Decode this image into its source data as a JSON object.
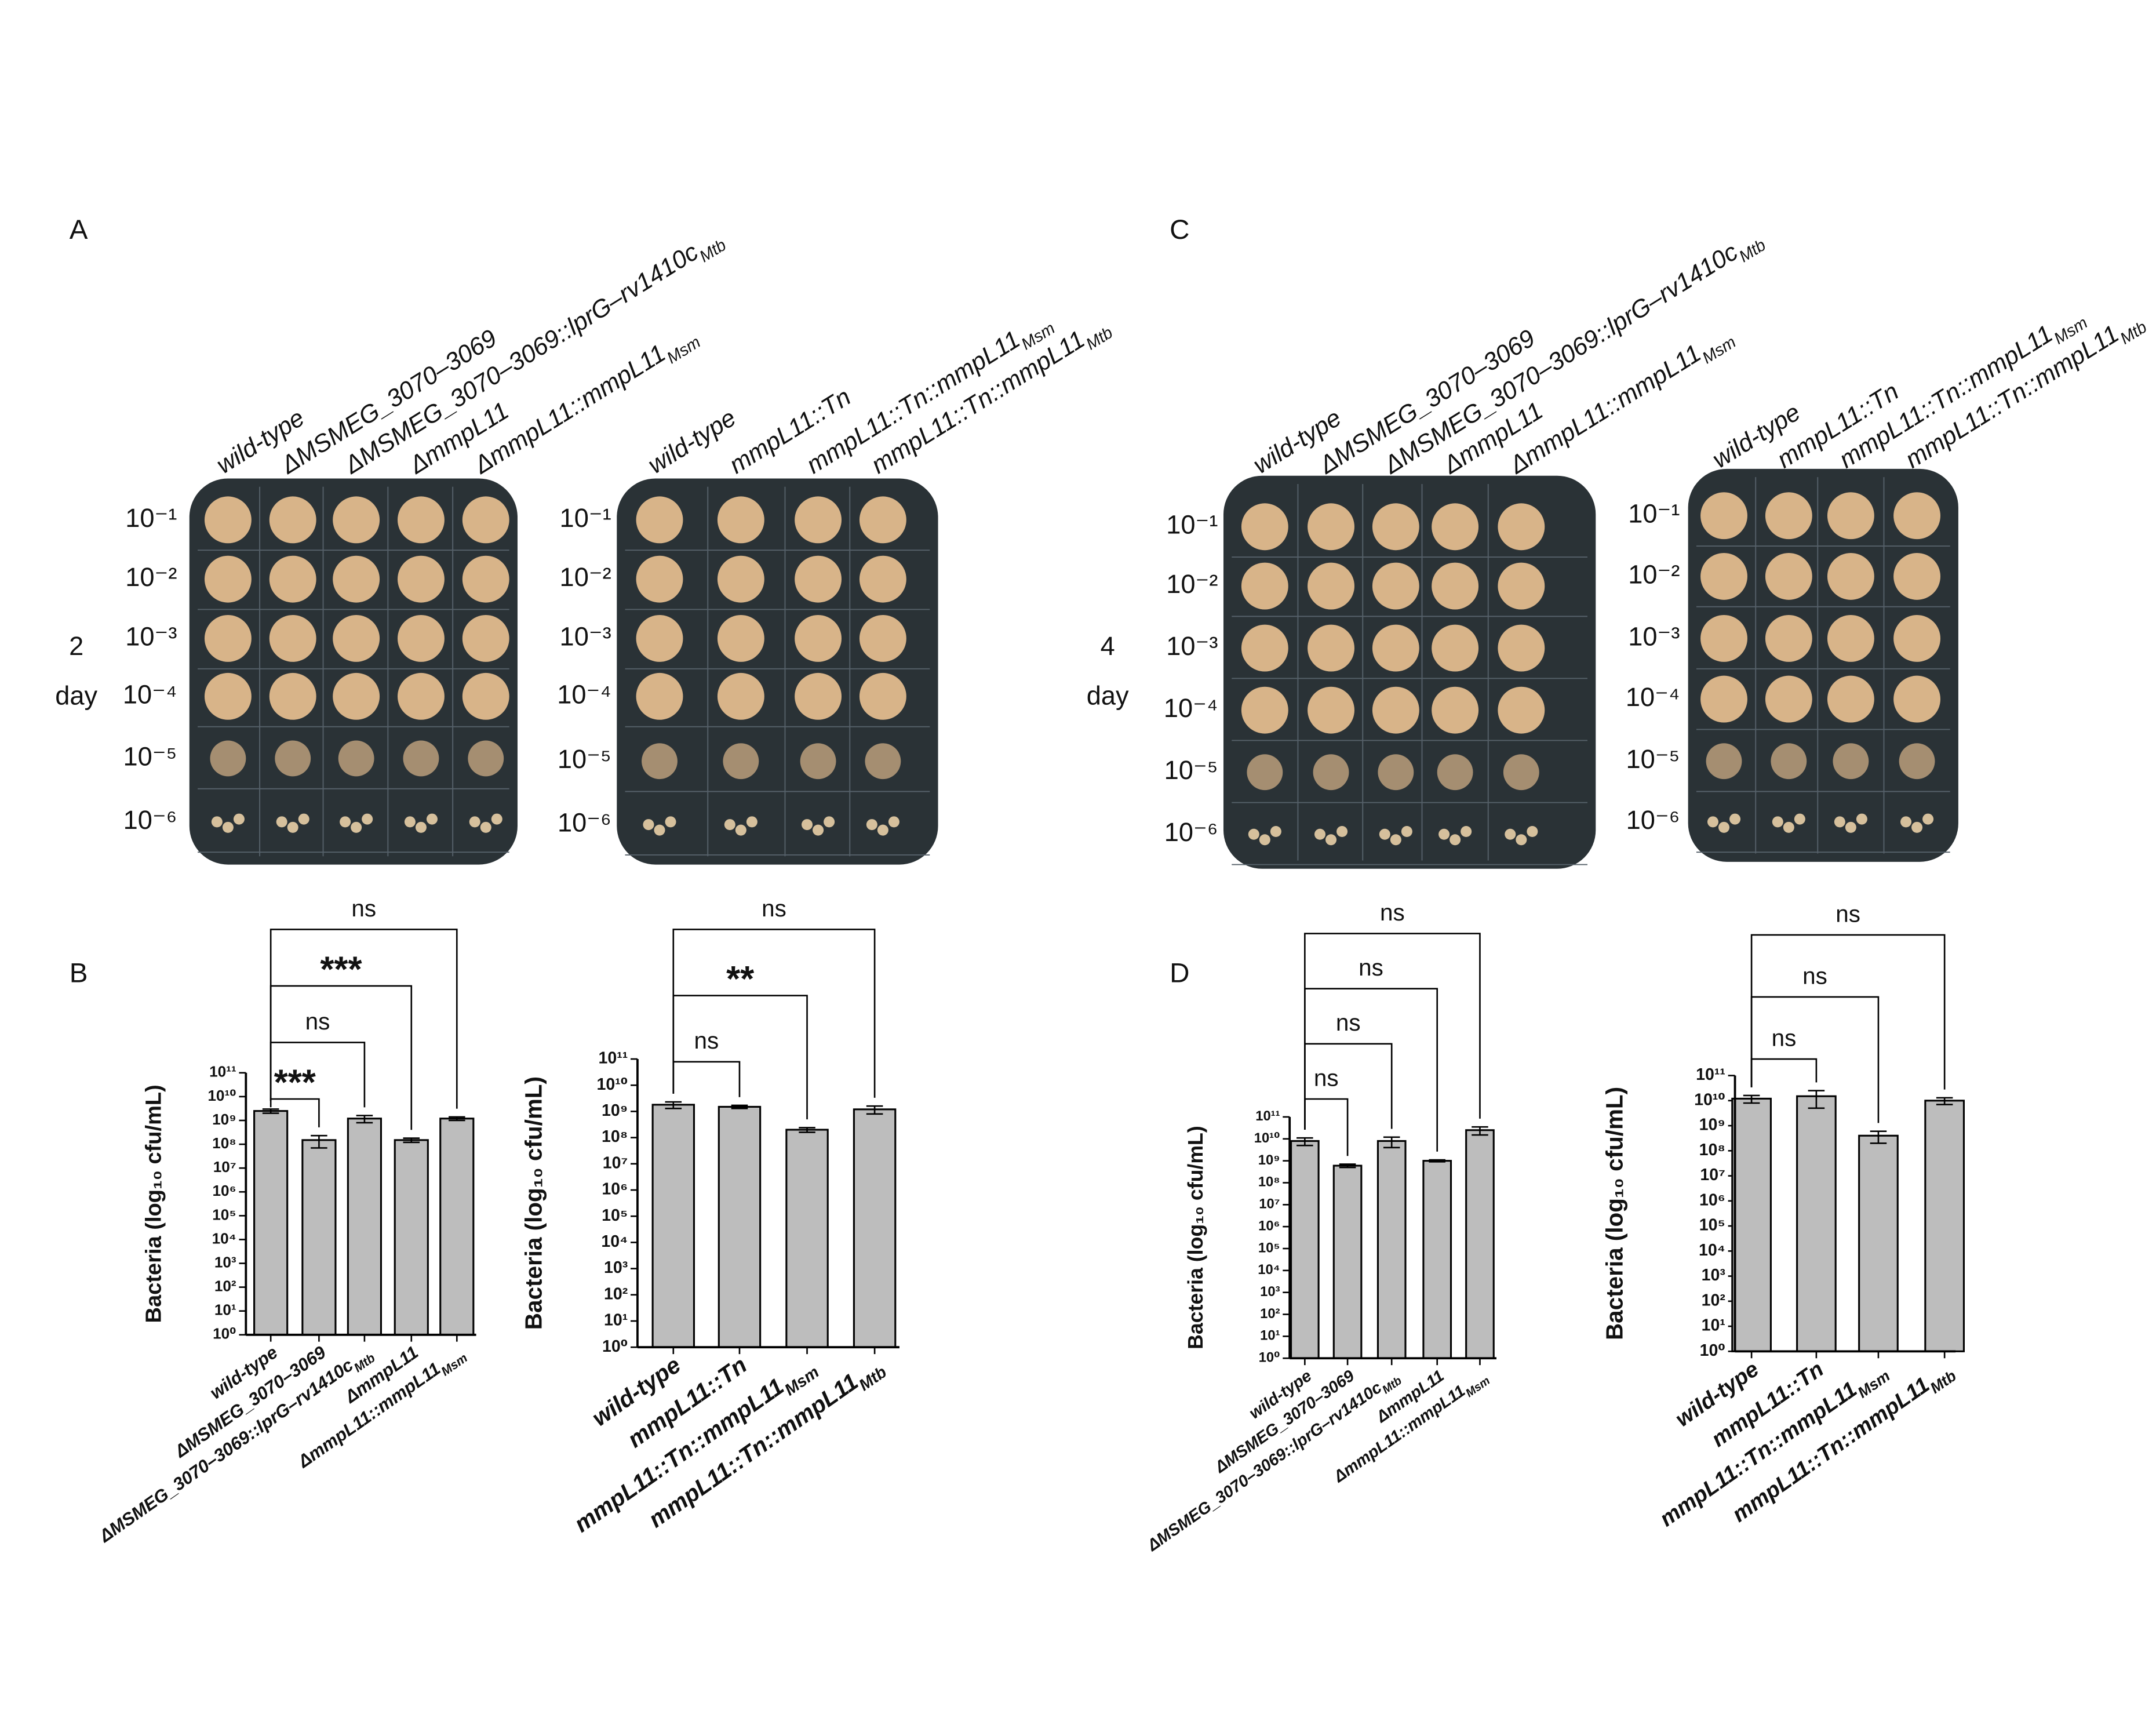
{
  "panel_labels": [
    "A",
    "B",
    "C",
    "D"
  ],
  "plates": [
    {
      "strains": [
        "wild-type",
        "ΔMSMEG_3070–3069",
        "ΔMSMEG_3070–3069::lprG–rv1410c",
        "ΔmmpL11",
        "ΔmmpL11::mmpL11"
      ],
      "strain_subscripts": [
        null,
        null,
        "Mtb",
        null,
        "Msm"
      ],
      "dilutions": [
        "10⁻¹",
        "10⁻²",
        "10⁻³",
        "10⁻⁴",
        "10⁻⁵",
        "10⁻⁶"
      ],
      "time": [
        "2",
        "day"
      ]
    },
    {
      "strains": [
        "wild-type",
        "mmpL11::Tn",
        "mmpL11::Tn::mmpL11",
        "mmpL11::Tn::mmpL11"
      ],
      "strain_subscripts": [
        null,
        null,
        "Msm",
        "Mtb"
      ],
      "dilutions": [
        "10⁻¹",
        "10⁻²",
        "10⁻³",
        "10⁻⁴",
        "10⁻⁵",
        "10⁻⁶"
      ]
    },
    {
      "strains": [
        "wild-type",
        "ΔMSMEG_3070–3069",
        "ΔMSMEG_3070–3069::lprG–rv1410c",
        "ΔmmpL11",
        "ΔmmpL11::mmpL11"
      ],
      "strain_subscripts": [
        null,
        null,
        "Mtb",
        null,
        "Msm"
      ],
      "dilutions": [
        "10⁻¹",
        "10⁻²",
        "10⁻³",
        "10⁻⁴",
        "10⁻⁵",
        "10⁻⁶"
      ],
      "time": [
        "4",
        "day"
      ]
    },
    {
      "strains": [
        "wild-type",
        "mmpL11::Tn",
        "mmpL11::Tn::mmpL11",
        "mmpL11::Tn::mmpL11"
      ],
      "strain_subscripts": [
        null,
        null,
        "Msm",
        "Mtb"
      ],
      "dilutions": [
        "10⁻¹",
        "10⁻²",
        "10⁻³",
        "10⁻⁴",
        "10⁻⁵",
        "10⁻⁶"
      ]
    }
  ],
  "chart_data": [
    {
      "type": "bar",
      "y_label": "Bacteria (log₁₀ cfu/mL)",
      "log_scale": true,
      "color": "#bdbdbd",
      "categories": [
        "wild-type",
        "ΔMSMEG_3070–3069",
        "ΔMSMEG_3070–3069::lprG–rv1410c",
        "ΔmmpL11",
        "ΔmmpL11::mmpL11"
      ],
      "category_subscripts": [
        null,
        null,
        "Mtb",
        null,
        "Msm"
      ],
      "values": [
        2500000000,
        150000000,
        1200000000,
        150000000,
        1200000000
      ],
      "errors": [
        500000000,
        80000000,
        400000000,
        30000000,
        200000000
      ],
      "comparison_labels": [
        null,
        "***",
        "ns",
        "***",
        "ns"
      ],
      "ylim": [
        1,
        100000000000
      ],
      "yticks": [
        {
          "value": 1,
          "label": "10⁰"
        },
        {
          "value": 10,
          "label": "10¹"
        },
        {
          "value": 100,
          "label": "10²"
        },
        {
          "value": 1000,
          "label": "10³"
        },
        {
          "value": 10000,
          "label": "10⁴"
        },
        {
          "value": 100000,
          "label": "10⁵"
        },
        {
          "value": 1000000,
          "label": "10⁶"
        },
        {
          "value": 10000000,
          "label": "10⁷"
        },
        {
          "value": 100000000,
          "label": "10⁸"
        },
        {
          "value": 1000000000,
          "label": "10⁹"
        },
        {
          "value": 10000000000,
          "label": "10¹⁰"
        },
        {
          "value": 100000000000,
          "label": "10¹¹"
        }
      ]
    },
    {
      "type": "bar",
      "y_label": "Bacteria (log₁₀ cfu/mL)",
      "log_scale": true,
      "color": "#bdbdbd",
      "categories": [
        "wild-type",
        "mmpL11::Tn",
        "mmpL11::Tn::mmpL11",
        "mmpL11::Tn::mmpL11"
      ],
      "category_subscripts": [
        null,
        null,
        "Msm",
        "Mtb"
      ],
      "values": [
        1800000000,
        1500000000,
        200000000,
        1200000000
      ],
      "errors": [
        500000000,
        200000000,
        40000000,
        400000000
      ],
      "comparison_labels": [
        null,
        "ns",
        "**",
        "ns"
      ],
      "ylim": [
        1,
        100000000000
      ],
      "yticks": [
        {
          "value": 1,
          "label": "10⁰"
        },
        {
          "value": 10,
          "label": "10¹"
        },
        {
          "value": 100,
          "label": "10²"
        },
        {
          "value": 1000,
          "label": "10³"
        },
        {
          "value": 10000,
          "label": "10⁴"
        },
        {
          "value": 100000,
          "label": "10⁵"
        },
        {
          "value": 1000000,
          "label": "10⁶"
        },
        {
          "value": 10000000,
          "label": "10⁷"
        },
        {
          "value": 100000000,
          "label": "10⁸"
        },
        {
          "value": 1000000000,
          "label": "10⁹"
        },
        {
          "value": 10000000000,
          "label": "10¹⁰"
        },
        {
          "value": 100000000000,
          "label": "10¹¹"
        }
      ]
    },
    {
      "type": "bar",
      "y_label": "Bacteria (log₁₀ cfu/mL)",
      "log_scale": true,
      "color": "#bdbdbd",
      "categories": [
        "wild-type",
        "ΔMSMEG_3070–3069",
        "ΔMSMEG_3070–3069::lprG–rv1410c",
        "ΔmmpL11",
        "ΔmmpL11::mmpL11"
      ],
      "category_subscripts": [
        null,
        null,
        "Mtb",
        null,
        "Msm"
      ],
      "values": [
        8000000000,
        600000000,
        8000000000,
        1000000000,
        25000000000
      ],
      "errors": [
        3000000000,
        100000000,
        4000000000,
        100000000,
        10000000000
      ],
      "comparison_labels": [
        null,
        "ns",
        "ns",
        "ns",
        "ns"
      ],
      "ylim": [
        1,
        100000000000
      ],
      "yticks": [
        {
          "value": 1,
          "label": "10⁰"
        },
        {
          "value": 10,
          "label": "10¹"
        },
        {
          "value": 100,
          "label": "10²"
        },
        {
          "value": 1000,
          "label": "10³"
        },
        {
          "value": 10000,
          "label": "10⁴"
        },
        {
          "value": 100000,
          "label": "10⁵"
        },
        {
          "value": 1000000,
          "label": "10⁶"
        },
        {
          "value": 10000000,
          "label": "10⁷"
        },
        {
          "value": 100000000,
          "label": "10⁸"
        },
        {
          "value": 1000000000,
          "label": "10⁹"
        },
        {
          "value": 10000000000,
          "label": "10¹⁰"
        },
        {
          "value": 100000000000,
          "label": "10¹¹"
        }
      ]
    },
    {
      "type": "bar",
      "y_label": "Bacteria (log₁₀ cfu/mL)",
      "log_scale": true,
      "color": "#bdbdbd",
      "categories": [
        "wild-type",
        "mmpL11::Tn",
        "mmpL11::Tn::mmpL11",
        "mmpL11::Tn::mmpL11"
      ],
      "category_subscripts": [
        null,
        null,
        "Msm",
        "Mtb"
      ],
      "values": [
        12000000000,
        15000000000,
        400000000,
        10000000000
      ],
      "errors": [
        4000000000,
        10000000000,
        200000000,
        3000000000
      ],
      "comparison_labels": [
        null,
        "ns",
        "ns",
        "ns"
      ],
      "ylim": [
        1,
        100000000000
      ],
      "yticks": [
        {
          "value": 1,
          "label": "10⁰"
        },
        {
          "value": 10,
          "label": "10¹"
        },
        {
          "value": 100,
          "label": "10²"
        },
        {
          "value": 1000,
          "label": "10³"
        },
        {
          "value": 10000,
          "label": "10⁴"
        },
        {
          "value": 100000,
          "label": "10⁵"
        },
        {
          "value": 1000000,
          "label": "10⁶"
        },
        {
          "value": 10000000,
          "label": "10⁷"
        },
        {
          "value": 100000000,
          "label": "10⁸"
        },
        {
          "value": 1000000000,
          "label": "10⁹"
        },
        {
          "value": 10000000000,
          "label": "10¹⁰"
        },
        {
          "value": 100000000000,
          "label": "10¹¹"
        }
      ]
    }
  ]
}
